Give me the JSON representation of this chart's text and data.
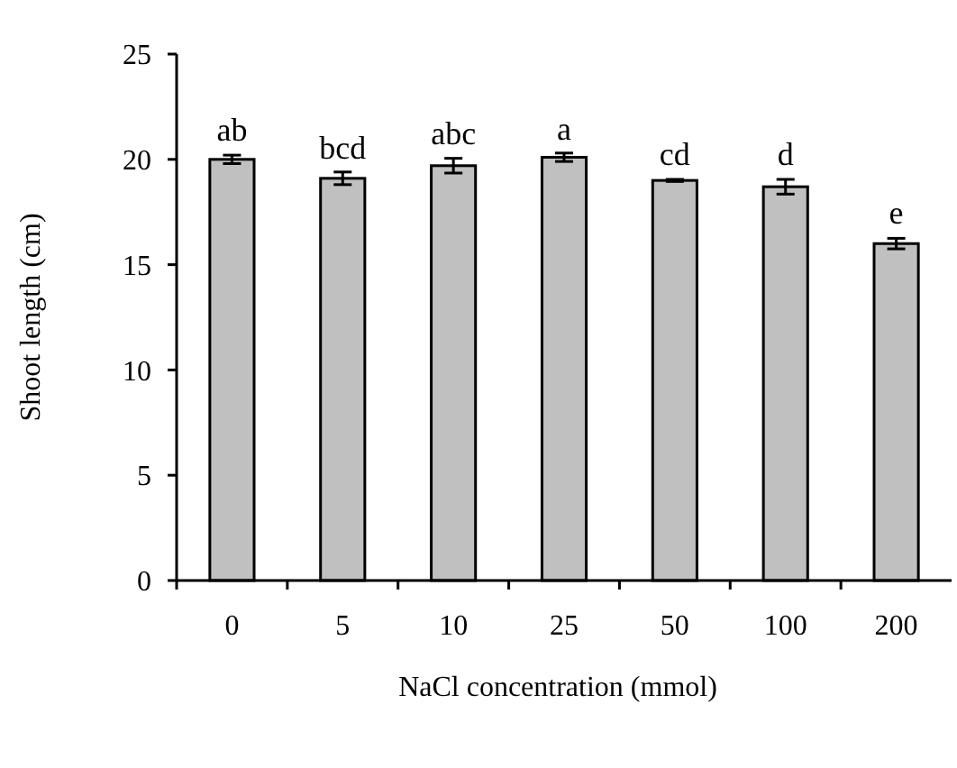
{
  "chart_data": {
    "type": "bar",
    "xlabel": "NaCl concentration (mmol)",
    "ylabel": "Shoot length (cm)",
    "categories": [
      "0",
      "5",
      "10",
      "25",
      "50",
      "100",
      "200"
    ],
    "values": [
      20.0,
      19.1,
      19.7,
      20.1,
      19.0,
      18.7,
      16.0
    ],
    "errors": [
      0.2,
      0.3,
      0.35,
      0.2,
      0.05,
      0.35,
      0.25
    ],
    "color": "#c0c0c0",
    "ylim": [
      0,
      25
    ],
    "yticks": [
      0,
      5,
      10,
      15,
      20,
      25
    ],
    "grid": false,
    "annotations": [
      {
        "text": "ab",
        "x": "0",
        "y": 20.2
      },
      {
        "text": "bcd",
        "x": "5",
        "y": 19.35
      },
      {
        "text": "abc",
        "x": "10",
        "y": 20.05
      },
      {
        "text": "a",
        "x": "25",
        "y": 20.25
      },
      {
        "text": "cd",
        "x": "50",
        "y": 19.05
      },
      {
        "text": "d",
        "x": "100",
        "y": 19.05
      },
      {
        "text": "e",
        "x": "200",
        "y": 16.25
      }
    ]
  }
}
